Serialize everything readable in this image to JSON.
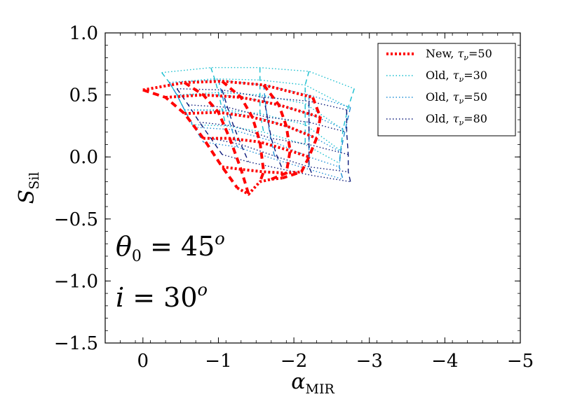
{
  "chart_data": {
    "type": "line",
    "title": "",
    "xlabel": {
      "symbol": "α",
      "subscript": "MIR"
    },
    "ylabel": {
      "symbol": "S",
      "subscript": "Sil"
    },
    "xlim": [
      0.5,
      -5
    ],
    "ylim": [
      -1.5,
      1.0
    ],
    "xticks": [
      0,
      -1,
      -2,
      -3,
      -4,
      -5
    ],
    "xtick_labels": [
      "0",
      "−1",
      "−2",
      "−3",
      "−4",
      "−5"
    ],
    "yticks": [
      1.0,
      0.5,
      0.0,
      -0.5,
      -1.0,
      -1.5
    ],
    "ytick_labels": [
      "1.0",
      "0.5",
      "0.0",
      "−0.5",
      "−1.0",
      "−1.5"
    ],
    "annotations": [
      {
        "symbol": "θ",
        "subscript": "0",
        "rest": " = 45",
        "sup": "o"
      },
      {
        "symbol": "i",
        "subscript": "",
        "rest": " = 30",
        "sup": "o"
      }
    ],
    "legend_position": "upper-right",
    "series": [
      {
        "name": "Old, τν=30",
        "label_main": "Old, ",
        "label_tau": "τ",
        "label_sub": "ν",
        "label_val": "=30",
        "color": "#17becf",
        "style": "dotted",
        "dash_family": "dashed",
        "weight": "thin",
        "grid_a": [
          [
            [
              -0.25,
              0.68
            ],
            [
              -0.9,
              0.72
            ],
            [
              -1.55,
              0.72
            ],
            [
              -2.2,
              0.69
            ],
            [
              -2.8,
              0.55
            ]
          ],
          [
            [
              -0.35,
              0.6
            ],
            [
              -0.95,
              0.63
            ],
            [
              -1.55,
              0.62
            ],
            [
              -2.15,
              0.58
            ],
            [
              -2.72,
              0.4
            ]
          ],
          [
            [
              -0.45,
              0.5
            ],
            [
              -1.0,
              0.52
            ],
            [
              -1.55,
              0.5
            ],
            [
              -2.15,
              0.43
            ],
            [
              -2.65,
              0.22
            ]
          ],
          [
            [
              -0.55,
              0.38
            ],
            [
              -1.05,
              0.38
            ],
            [
              -1.55,
              0.35
            ],
            [
              -2.15,
              0.26
            ],
            [
              -2.62,
              0.05
            ]
          ],
          [
            [
              -0.65,
              0.26
            ],
            [
              -1.1,
              0.25
            ],
            [
              -1.6,
              0.2
            ],
            [
              -2.15,
              0.1
            ],
            [
              -2.6,
              -0.05
            ]
          ]
        ]
      },
      {
        "name": "Old, τν=50",
        "label_main": "Old, ",
        "label_tau": "τ",
        "label_sub": "ν",
        "label_val": "=50",
        "color": "#1f8fd6",
        "style": "dotted",
        "dash_family": "dashed",
        "weight": "thin",
        "grid_a": [
          [
            [
              -0.35,
              0.6
            ],
            [
              -1.0,
              0.62
            ],
            [
              -1.6,
              0.58
            ],
            [
              -2.2,
              0.5
            ],
            [
              -2.75,
              0.4
            ]
          ],
          [
            [
              -0.45,
              0.5
            ],
            [
              -1.05,
              0.5
            ],
            [
              -1.62,
              0.45
            ],
            [
              -2.2,
              0.35
            ],
            [
              -2.68,
              0.22
            ]
          ],
          [
            [
              -0.55,
              0.38
            ],
            [
              -1.1,
              0.37
            ],
            [
              -1.65,
              0.3
            ],
            [
              -2.2,
              0.18
            ],
            [
              -2.62,
              0.04
            ]
          ],
          [
            [
              -0.68,
              0.24
            ],
            [
              -1.18,
              0.22
            ],
            [
              -1.7,
              0.13
            ],
            [
              -2.2,
              0.0
            ],
            [
              -2.6,
              -0.08
            ]
          ],
          [
            [
              -0.8,
              0.12
            ],
            [
              -1.25,
              0.08
            ],
            [
              -1.75,
              -0.02
            ],
            [
              -2.2,
              -0.1
            ],
            [
              -2.65,
              -0.18
            ]
          ]
        ]
      },
      {
        "name": "Old, τν=80",
        "label_main": "Old, ",
        "label_tau": "τ",
        "label_sub": "ν",
        "label_val": "=80",
        "color": "#0b1a7a",
        "style": "dotted",
        "dash_family": "dashed",
        "weight": "thin",
        "grid_a": [
          [
            [
              -0.45,
              0.55
            ],
            [
              -1.05,
              0.54
            ],
            [
              -1.6,
              0.48
            ],
            [
              -2.2,
              0.45
            ],
            [
              -2.7,
              0.38
            ]
          ],
          [
            [
              -0.6,
              0.42
            ],
            [
              -1.12,
              0.4
            ],
            [
              -1.65,
              0.32
            ],
            [
              -2.2,
              0.28
            ],
            [
              -2.7,
              0.2
            ]
          ],
          [
            [
              -0.75,
              0.28
            ],
            [
              -1.2,
              0.25
            ],
            [
              -1.7,
              0.15
            ],
            [
              -2.2,
              0.1
            ],
            [
              -2.72,
              0.02
            ]
          ],
          [
            [
              -0.9,
              0.15
            ],
            [
              -1.3,
              0.1
            ],
            [
              -1.78,
              0.0
            ],
            [
              -2.2,
              -0.08
            ],
            [
              -2.72,
              -0.12
            ]
          ],
          [
            [
              -1.05,
              0.02
            ],
            [
              -1.4,
              -0.04
            ],
            [
              -1.85,
              -0.1
            ],
            [
              -2.25,
              -0.15
            ],
            [
              -2.75,
              -0.2
            ]
          ]
        ]
      },
      {
        "name": "New, τν=50",
        "label_main": "New, ",
        "label_tau": "τ",
        "label_sub": "ν",
        "label_val": "=50",
        "color": "#ff0000",
        "style": "dotted",
        "dash_family": "dashed",
        "weight": "thick",
        "grid_a": [
          [
            [
              0.0,
              0.54
            ],
            [
              -0.55,
              0.6
            ],
            [
              -1.05,
              0.61
            ],
            [
              -1.6,
              0.58
            ],
            [
              -2.25,
              0.48
            ]
          ],
          [
            [
              -0.3,
              0.48
            ],
            [
              -0.8,
              0.5
            ],
            [
              -1.3,
              0.48
            ],
            [
              -1.8,
              0.42
            ],
            [
              -2.35,
              0.32
            ]
          ],
          [
            [
              -0.55,
              0.35
            ],
            [
              -1.0,
              0.36
            ],
            [
              -1.45,
              0.32
            ],
            [
              -1.9,
              0.25
            ],
            [
              -2.3,
              0.15
            ]
          ],
          [
            [
              -0.8,
              0.15
            ],
            [
              -1.15,
              0.15
            ],
            [
              -1.55,
              0.12
            ],
            [
              -1.95,
              0.05
            ],
            [
              -2.2,
              0.0
            ]
          ],
          [
            [
              -1.05,
              -0.08
            ],
            [
              -1.3,
              -0.1
            ],
            [
              -1.6,
              -0.12
            ],
            [
              -1.9,
              -0.13
            ],
            [
              -2.1,
              -0.12
            ]
          ],
          [
            [
              -1.25,
              -0.25
            ],
            [
              -1.4,
              -0.3
            ],
            [
              -1.55,
              -0.2
            ],
            [
              -1.7,
              -0.18
            ],
            [
              -1.85,
              -0.17
            ]
          ]
        ]
      }
    ]
  }
}
